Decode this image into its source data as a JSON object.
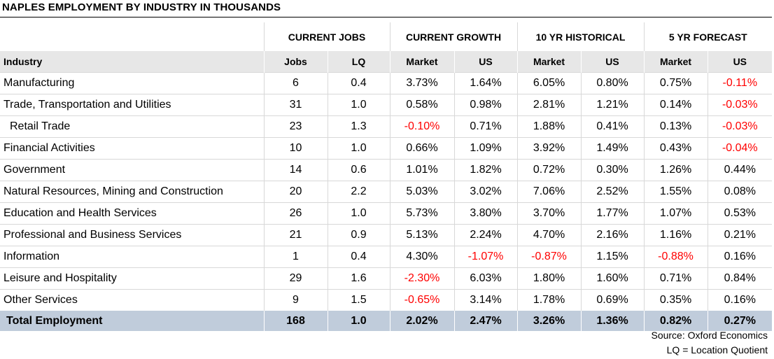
{
  "title": "NAPLES EMPLOYMENT BY INDUSTRY IN THOUSANDS",
  "groups": [
    "CURRENT JOBS",
    "CURRENT GROWTH",
    "10 YR HISTORICAL",
    "5 YR FORECAST"
  ],
  "columns": [
    "Industry",
    "Jobs",
    "LQ",
    "Market",
    "US",
    "Market",
    "US",
    "Market",
    "US"
  ],
  "rows": [
    {
      "industry": "Manufacturing",
      "indent": false,
      "values": [
        "6",
        "0.4",
        "3.73%",
        "1.64%",
        "6.05%",
        "0.80%",
        "0.75%",
        "-0.11%"
      ]
    },
    {
      "industry": "Trade, Transportation and Utilities",
      "indent": false,
      "values": [
        "31",
        "1.0",
        "0.58%",
        "0.98%",
        "2.81%",
        "1.21%",
        "0.14%",
        "-0.03%"
      ]
    },
    {
      "industry": "Retail Trade",
      "indent": true,
      "values": [
        "23",
        "1.3",
        "-0.10%",
        "0.71%",
        "1.88%",
        "0.41%",
        "0.13%",
        "-0.03%"
      ]
    },
    {
      "industry": "Financial Activities",
      "indent": false,
      "values": [
        "10",
        "1.0",
        "0.66%",
        "1.09%",
        "3.92%",
        "1.49%",
        "0.43%",
        "-0.04%"
      ]
    },
    {
      "industry": "Government",
      "indent": false,
      "values": [
        "14",
        "0.6",
        "1.01%",
        "1.82%",
        "0.72%",
        "0.30%",
        "1.26%",
        "0.44%"
      ]
    },
    {
      "industry": "Natural Resources, Mining and Construction",
      "indent": false,
      "values": [
        "20",
        "2.2",
        "5.03%",
        "3.02%",
        "7.06%",
        "2.52%",
        "1.55%",
        "0.08%"
      ]
    },
    {
      "industry": "Education and Health Services",
      "indent": false,
      "values": [
        "26",
        "1.0",
        "5.73%",
        "3.80%",
        "3.70%",
        "1.77%",
        "1.07%",
        "0.53%"
      ]
    },
    {
      "industry": "Professional and Business Services",
      "indent": false,
      "values": [
        "21",
        "0.9",
        "5.13%",
        "2.24%",
        "4.70%",
        "2.16%",
        "1.16%",
        "0.21%"
      ]
    },
    {
      "industry": "Information",
      "indent": false,
      "values": [
        "1",
        "0.4",
        "4.30%",
        "-1.07%",
        "-0.87%",
        "1.15%",
        "-0.88%",
        "0.16%"
      ]
    },
    {
      "industry": "Leisure and Hospitality",
      "indent": false,
      "values": [
        "29",
        "1.6",
        "-2.30%",
        "6.03%",
        "1.80%",
        "1.60%",
        "0.71%",
        "0.84%"
      ]
    },
    {
      "industry": "Other Services",
      "indent": false,
      "values": [
        "9",
        "1.5",
        "-0.65%",
        "3.14%",
        "1.78%",
        "0.69%",
        "0.35%",
        "0.16%"
      ]
    }
  ],
  "total": {
    "industry": "Total Employment",
    "values": [
      "168",
      "1.0",
      "2.02%",
      "2.47%",
      "3.26%",
      "1.36%",
      "0.82%",
      "0.27%"
    ]
  },
  "source": "Source: Oxford Economics",
  "note": "LQ = Location Quotient",
  "colors": {
    "negative": "#ff0000",
    "header_bg": "#e7e7e7",
    "total_bg": "#c0ccdb"
  }
}
